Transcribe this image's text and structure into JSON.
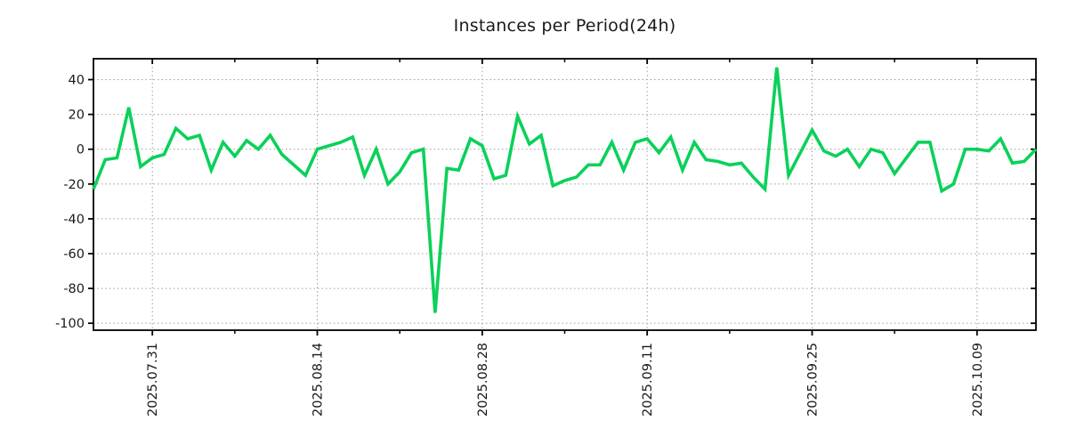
{
  "title": "Instances per Period(24h)",
  "chart_data": {
    "type": "line",
    "title": "Instances per Period(24h)",
    "line_color": "#0ad15a",
    "grid": true,
    "legend": "none",
    "ylim": [
      -104,
      52
    ],
    "y_ticks": [
      40,
      20,
      0,
      -20,
      -40,
      -60,
      -80,
      -100
    ],
    "x_tick_labels": [
      "2025.07.31",
      "2025.08.14",
      "2025.08.28",
      "2025.09.11",
      "2025.09.25",
      "2025.10.09"
    ],
    "x_tick_indices": [
      5,
      19,
      33,
      47,
      61,
      75
    ],
    "x_minor_tick_indices": [
      12,
      26,
      40,
      54,
      68
    ],
    "values": [
      -23,
      -6,
      -5,
      24,
      -10,
      -5,
      -3,
      12,
      6,
      8,
      -12,
      4,
      -4,
      5,
      0,
      8,
      -3,
      -9,
      -15,
      0,
      2,
      4,
      7,
      -15,
      0,
      -20,
      -13,
      -2,
      0,
      -94,
      -11,
      -12,
      6,
      2,
      -17,
      -15,
      19,
      3,
      8,
      -21,
      -18,
      -16,
      -9,
      -9,
      4,
      -12,
      4,
      6,
      -2,
      7,
      -12,
      4,
      -6,
      -7,
      -9,
      -8,
      -16,
      -23,
      47,
      -15,
      -2,
      11,
      -1,
      -4,
      0,
      -10,
      0,
      -2,
      -14,
      -5,
      4,
      4,
      -24,
      -20,
      0,
      0,
      -1,
      6,
      -8,
      -7,
      0
    ]
  }
}
